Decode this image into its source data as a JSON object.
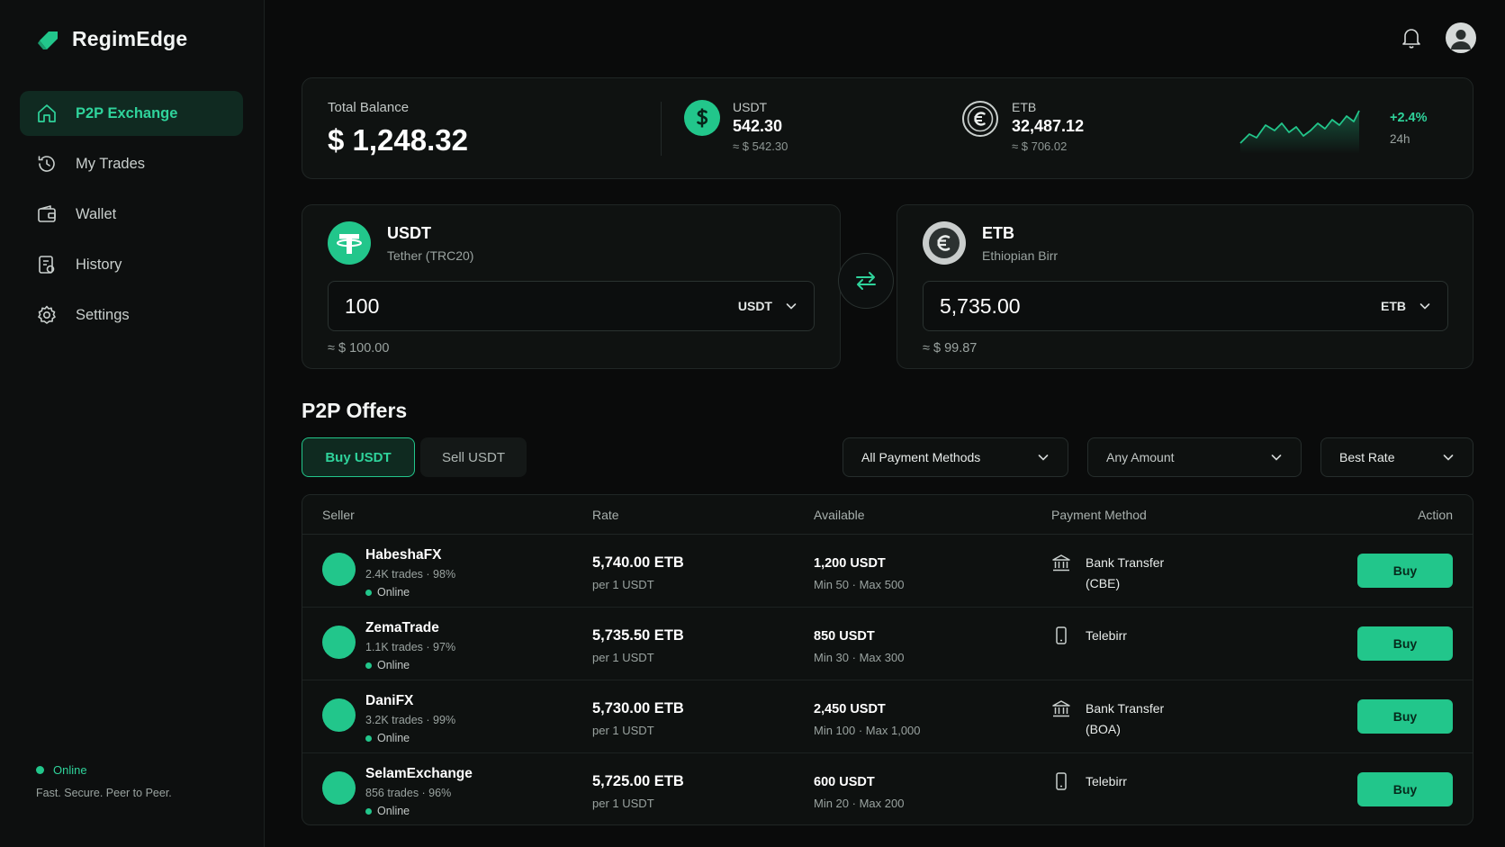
{
  "brand": {
    "name": "RegimEdge",
    "logo_icon": "leaf-logo-icon",
    "accent": "#22c68b"
  },
  "sidebar": {
    "items": [
      {
        "label": "P2P Exchange",
        "icon": "home-icon",
        "active": true
      },
      {
        "label": "My Trades",
        "icon": "history-clock-icon",
        "active": false
      },
      {
        "label": "Wallet",
        "icon": "wallet-icon",
        "active": false
      },
      {
        "label": "History",
        "icon": "document-icon",
        "active": false
      },
      {
        "label": "Settings",
        "icon": "gear-icon",
        "active": false
      }
    ],
    "status": "Online",
    "tagline": "Fast. Secure. Peer to Peer."
  },
  "header": {
    "icons": [
      "bell-icon",
      "user-avatar-icon"
    ]
  },
  "balance": {
    "label": "Total Balance",
    "value": "$ 1,248.32",
    "usdt": {
      "name": "USDT",
      "amount": "542.30",
      "usd": "≈ $ 542.30"
    },
    "etb": {
      "name": "ETB",
      "amount": "32,487.12",
      "usd": "≈ $ 706.02"
    },
    "change": "+2.4%",
    "period": "24h"
  },
  "converter": {
    "from": {
      "code": "USDT",
      "name": "Tether (TRC20)",
      "amount": "100",
      "currency": "USDT",
      "usd": "≈ $ 100.00"
    },
    "to": {
      "code": "ETB",
      "name": "Ethiopian Birr",
      "amount": "5,735.00",
      "currency": "ETB",
      "usd": "≈ $ 99.87"
    }
  },
  "offers": {
    "title": "P2P Offers",
    "tabs": {
      "buy": "Buy USDT",
      "sell": "Sell USDT"
    },
    "filters": {
      "payment": "All Payment Methods",
      "amount": "Any Amount",
      "sort": "Best Rate"
    },
    "columns": {
      "seller": "Seller",
      "rate": "Rate",
      "available": "Available",
      "payment": "Payment Method",
      "action": "Action"
    },
    "rows": [
      {
        "seller": "HabeshaFX",
        "stats": "2.4K trades · 98%",
        "status": "Online",
        "rate": "5,740.00 ETB",
        "per": "per 1 USDT",
        "available": "1,200 USDT",
        "limits": "Min 50 · Max 500",
        "payment_line1": "Bank Transfer",
        "payment_line2": "(CBE)",
        "payment_icon": "bank-icon",
        "action": "Buy"
      },
      {
        "seller": "ZemaTrade",
        "stats": "1.1K trades · 97%",
        "status": "Online",
        "rate": "5,735.50 ETB",
        "per": "per 1 USDT",
        "available": "850 USDT",
        "limits": "Min 30 · Max 300",
        "payment_line1": "Telebirr",
        "payment_line2": "",
        "payment_icon": "phone-icon",
        "action": "Buy"
      },
      {
        "seller": "DaniFX",
        "stats": "3.2K trades · 99%",
        "status": "Online",
        "rate": "5,730.00 ETB",
        "per": "per 1 USDT",
        "available": "2,450 USDT",
        "limits": "Min 100 · Max 1,000",
        "payment_line1": "Bank Transfer",
        "payment_line2": "(BOA)",
        "payment_icon": "bank-icon",
        "action": "Buy"
      },
      {
        "seller": "SelamExchange",
        "stats": "856 trades · 96%",
        "status": "Online",
        "rate": "5,725.00 ETB",
        "per": "per 1 USDT",
        "available": "600 USDT",
        "limits": "Min 20 · Max 200",
        "payment_line1": "Telebirr",
        "payment_line2": "",
        "payment_icon": "phone-icon",
        "action": "Buy"
      }
    ]
  }
}
